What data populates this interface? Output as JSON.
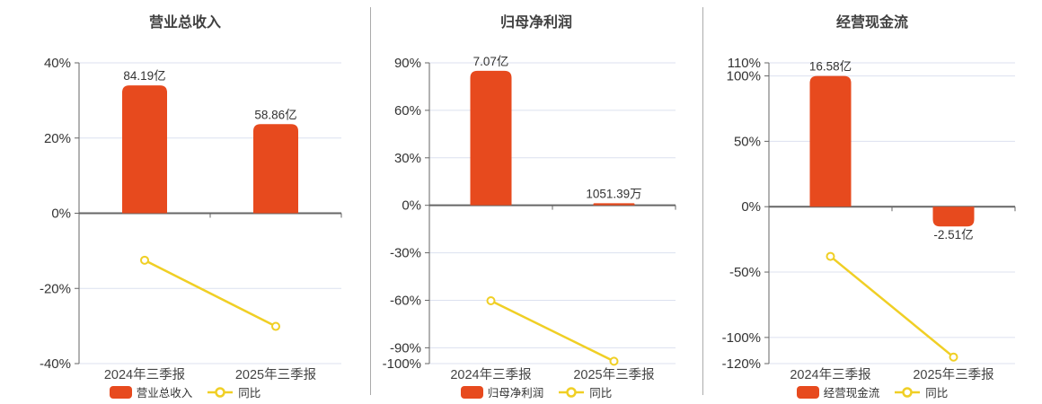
{
  "page": {
    "background": "#ffffff"
  },
  "colors": {
    "bar": "#E74A1E",
    "line": "#F0CF25",
    "gridline": "#DCE1EF",
    "axis": "#666666",
    "text": "#333333",
    "divider": "#ABABAB"
  },
  "chart_data": [
    {
      "type": "bar+line",
      "title": "营业总收入",
      "categories": [
        "2024年三季报",
        "2025年三季报"
      ],
      "bars": {
        "name": "营业总收入",
        "color": "#E74A1E",
        "items": [
          {
            "label": "84.19亿",
            "value": 84.19,
            "unit": "亿",
            "plot_pct": 34.0
          },
          {
            "label": "58.86亿",
            "value": 58.86,
            "unit": "亿",
            "plot_pct": 23.7
          }
        ]
      },
      "line": {
        "name": "同比",
        "color": "#F0CF25",
        "values_pct": [
          -12.5,
          -30.1
        ]
      },
      "y_axis": {
        "min": -40,
        "max": 40,
        "ticks": [
          40,
          20,
          0,
          -20,
          -40
        ],
        "tick_suffix": "%"
      },
      "legend_position": "bottom",
      "grid": true
    },
    {
      "type": "bar+line",
      "title": "归母净利润",
      "categories": [
        "2024年三季报",
        "2025年三季报"
      ],
      "bars": {
        "name": "归母净利润",
        "color": "#E74A1E",
        "items": [
          {
            "label": "7.07亿",
            "value": 7.07,
            "unit": "亿",
            "plot_pct": 85.0
          },
          {
            "label": "1051.39万",
            "value": 1051.39,
            "unit": "万",
            "plot_pct": 1.3
          }
        ]
      },
      "line": {
        "name": "同比",
        "color": "#F0CF25",
        "values_pct": [
          -60.3,
          -98.5
        ]
      },
      "y_axis": {
        "min": -100,
        "max": 90,
        "ticks": [
          90,
          60,
          30,
          0,
          -30,
          -60,
          -90,
          -100
        ],
        "tick_suffix": "%"
      },
      "legend_position": "bottom",
      "grid": true
    },
    {
      "type": "bar+line",
      "title": "经营现金流",
      "categories": [
        "2024年三季报",
        "2025年三季报"
      ],
      "bars": {
        "name": "经营现金流",
        "color": "#E74A1E",
        "items": [
          {
            "label": "16.58亿",
            "value": 16.58,
            "unit": "亿",
            "plot_pct": 100.0
          },
          {
            "label": "-2.51亿",
            "value": -2.51,
            "unit": "亿",
            "plot_pct": -15.1
          }
        ]
      },
      "line": {
        "name": "同比",
        "color": "#F0CF25",
        "values_pct": [
          -38.0,
          -115.0
        ]
      },
      "y_axis": {
        "min": -120,
        "max": 110,
        "ticks": [
          110,
          100,
          50,
          0,
          -50,
          -100,
          -120
        ],
        "tick_suffix": "%"
      },
      "legend_position": "bottom",
      "grid": true
    }
  ]
}
